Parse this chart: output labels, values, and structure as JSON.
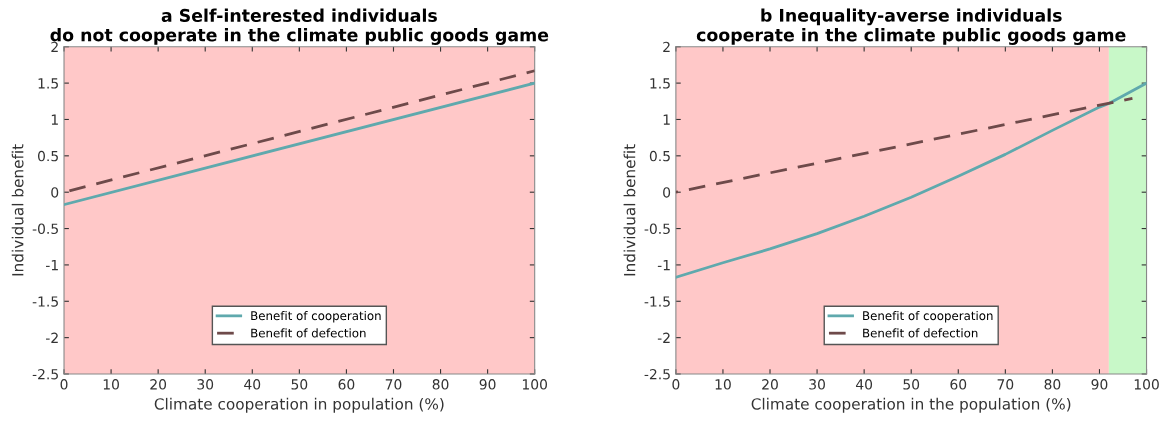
{
  "chart_data": [
    {
      "type": "line",
      "title": "a Self-interested individuals\ndo not cooperate in the climate public goods game",
      "xlabel": "Climate cooperation in population (%)",
      "ylabel": "Individual benefit",
      "xlim": [
        0,
        100
      ],
      "ylim": [
        -2.5,
        2
      ],
      "xticks": [
        0,
        10,
        20,
        30,
        40,
        50,
        60,
        70,
        80,
        90,
        100
      ],
      "yticks": [
        -2.5,
        -2,
        -1.5,
        -1,
        -0.5,
        0,
        0.5,
        1,
        1.5,
        2
      ],
      "grid": false,
      "legend": "bottom",
      "bands": [
        {
          "axis": "x",
          "from": 0,
          "to": 100,
          "color": "#ffc8c8"
        }
      ],
      "series": [
        {
          "name": "Benefit of cooperation",
          "color": "#5fa9ad",
          "line_style": "solid",
          "x": [
            0,
            100
          ],
          "values": [
            -0.17,
            1.5
          ]
        },
        {
          "name": "Benefit of defection",
          "color": "#6e4a4a",
          "line_style": "dashed",
          "x": [
            0,
            100
          ],
          "values": [
            0,
            1.67
          ]
        }
      ]
    },
    {
      "type": "line",
      "title": "b Inequality-averse individuals\ncooperate in the climate public goods game",
      "xlabel": "Climate cooperation in the population (%)",
      "ylabel": "Individual benefit",
      "xlim": [
        0,
        100
      ],
      "ylim": [
        -2.5,
        2
      ],
      "xticks": [
        0,
        10,
        20,
        30,
        40,
        50,
        60,
        70,
        80,
        90,
        100
      ],
      "yticks": [
        -2.5,
        -2,
        -1.5,
        -1,
        -0.5,
        0,
        0.5,
        1,
        1.5,
        2
      ],
      "grid": false,
      "legend": "bottom",
      "bands": [
        {
          "axis": "x",
          "from": 0,
          "to": 92,
          "color": "#ffc8c8"
        },
        {
          "axis": "x",
          "from": 92,
          "to": 100,
          "color": "#c8f8c8"
        }
      ],
      "series": [
        {
          "name": "Benefit of cooperation",
          "color": "#5fa9ad",
          "line_style": "solid",
          "x": [
            0,
            10,
            20,
            30,
            40,
            50,
            60,
            70,
            80,
            90,
            92,
            100
          ],
          "values": [
            -1.17,
            -0.97,
            -0.78,
            -0.57,
            -0.33,
            -0.07,
            0.22,
            0.52,
            0.85,
            1.17,
            1.22,
            1.5
          ]
        },
        {
          "name": "Benefit of defection",
          "color": "#6e4a4a",
          "line_style": "dashed",
          "x": [
            0,
            97
          ],
          "values": [
            0,
            1.29
          ]
        }
      ]
    }
  ]
}
